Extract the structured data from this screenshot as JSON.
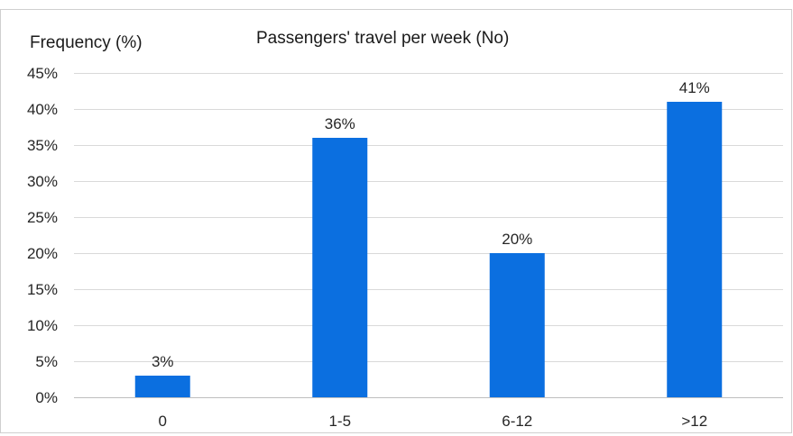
{
  "chart_data": {
    "type": "bar",
    "title": "Passengers' travel per week (No)",
    "ylabel": "Frequency (%)",
    "xlabel": "",
    "categories": [
      "0",
      "1-5",
      "6-12",
      ">12"
    ],
    "values": [
      3,
      36,
      20,
      41
    ],
    "value_labels": [
      "3%",
      "36%",
      "20%",
      "41%"
    ],
    "ylim": [
      0,
      45
    ],
    "yticks": [
      0,
      5,
      10,
      15,
      20,
      25,
      30,
      35,
      40,
      45
    ],
    "ytick_labels": [
      "0%",
      "5%",
      "10%",
      "15%",
      "20%",
      "25%",
      "30%",
      "35%",
      "40%",
      "45%"
    ],
    "grid": true,
    "legend": "none",
    "bar_color": "#0b6fe0"
  }
}
